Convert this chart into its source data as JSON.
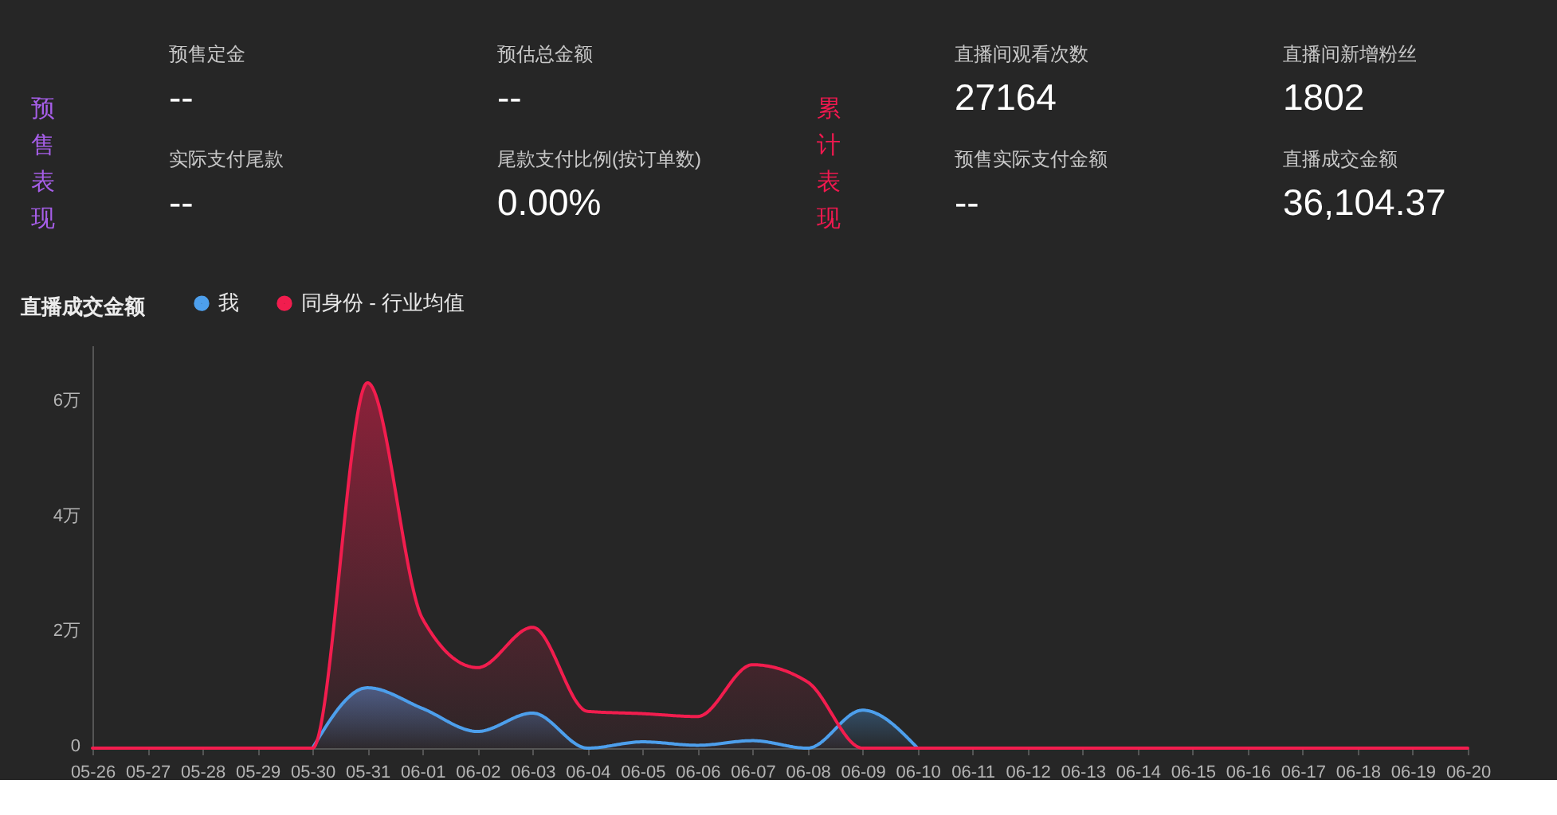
{
  "chart_data": [
    {
      "type": "other",
      "title": "预售表现",
      "annotations": [
        "预售定金",
        "--",
        "预估总金额",
        "--",
        "实际支付尾款",
        "--",
        "尾款支付比例(按订单数)",
        "0.00%"
      ]
    },
    {
      "type": "other",
      "title": "累计表现",
      "annotations": [
        "直播间观看次数",
        "27164",
        "直播间新增粉丝",
        "1802",
        "预售实际支付金额",
        "--",
        "直播成交金额",
        "36,104.37"
      ]
    },
    {
      "type": "area",
      "title": "直播成交金额",
      "categories": [
        "05-26",
        "05-27",
        "05-28",
        "05-29",
        "05-30",
        "05-31",
        "06-01",
        "06-02",
        "06-03",
        "06-04",
        "06-05",
        "06-06",
        "06-07",
        "06-08",
        "06-09",
        "06-10",
        "06-11",
        "06-12",
        "06-13",
        "06-14",
        "06-15",
        "06-16",
        "06-17",
        "06-18",
        "06-19",
        "06-20"
      ],
      "series": [
        {
          "name": "我",
          "color": "#4d9fec",
          "values": [
            null,
            null,
            null,
            null,
            0,
            1.05,
            0.69,
            0.29,
            0.61,
            0,
            0.11,
            0.05,
            0.13,
            0,
            0.66,
            0,
            null,
            null,
            null,
            null,
            null,
            null,
            null,
            null,
            null,
            null
          ]
        },
        {
          "name": "同身份 - 行业均值",
          "color": "#f21d4e",
          "values": [
            0,
            0,
            0,
            0,
            0,
            6.35,
            2.25,
            1.4,
            2.1,
            0.64,
            0.6,
            0.55,
            1.45,
            1.15,
            0,
            0,
            0,
            0,
            0,
            0,
            0,
            0,
            0,
            0,
            0,
            0
          ]
        }
      ],
      "ylim": [
        0,
        7
      ],
      "yticks": [
        0,
        {
          "value": 2,
          "label": "2万"
        },
        {
          "value": 4,
          "label": "4万"
        },
        {
          "value": 6,
          "label": "6万"
        }
      ],
      "legend": "top left",
      "grid": false
    }
  ]
}
